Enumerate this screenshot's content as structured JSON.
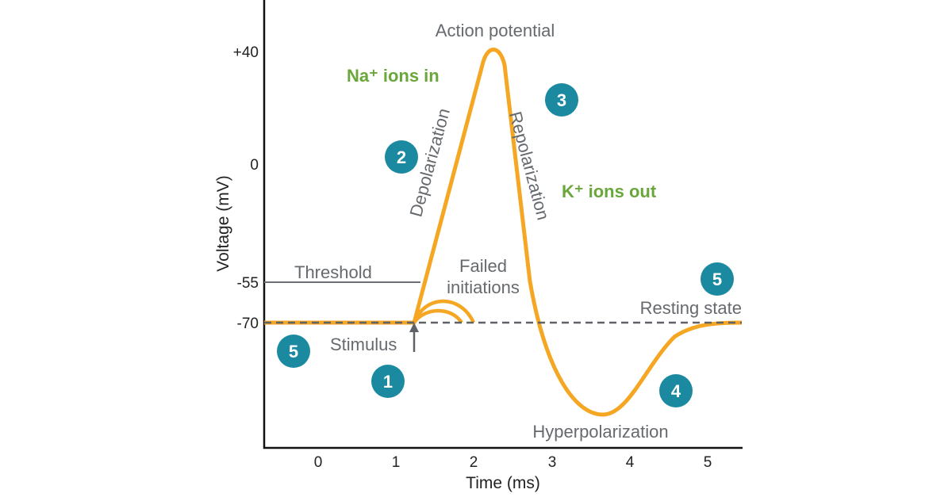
{
  "title": "Action potential",
  "axes": {
    "x_label": "Time (ms)",
    "y_label": "Voltage (mV)",
    "x_ticks": [
      "0",
      "1",
      "2",
      "3",
      "4",
      "5"
    ],
    "y_ticks": [
      "+40",
      "0",
      "-55",
      "-70"
    ]
  },
  "labels": {
    "na_ions": "Na⁺ ions in",
    "k_ions": "K⁺ ions out",
    "depolarization": "Depolarization",
    "repolarization": "Repolarization",
    "threshold": "Threshold",
    "failed_line1": "Failed",
    "failed_line2": "initiations",
    "resting_state": "Resting state",
    "stimulus": "Stimulus",
    "hyperpolarization": "Hyperpolarization"
  },
  "steps": [
    "5",
    "1",
    "2",
    "3",
    "4",
    "5"
  ],
  "colors": {
    "curve": "#f5a623",
    "text": "#666a6e",
    "ions": "#6aa73b",
    "badge": "#1b8aa1",
    "axis": "#111111"
  }
}
